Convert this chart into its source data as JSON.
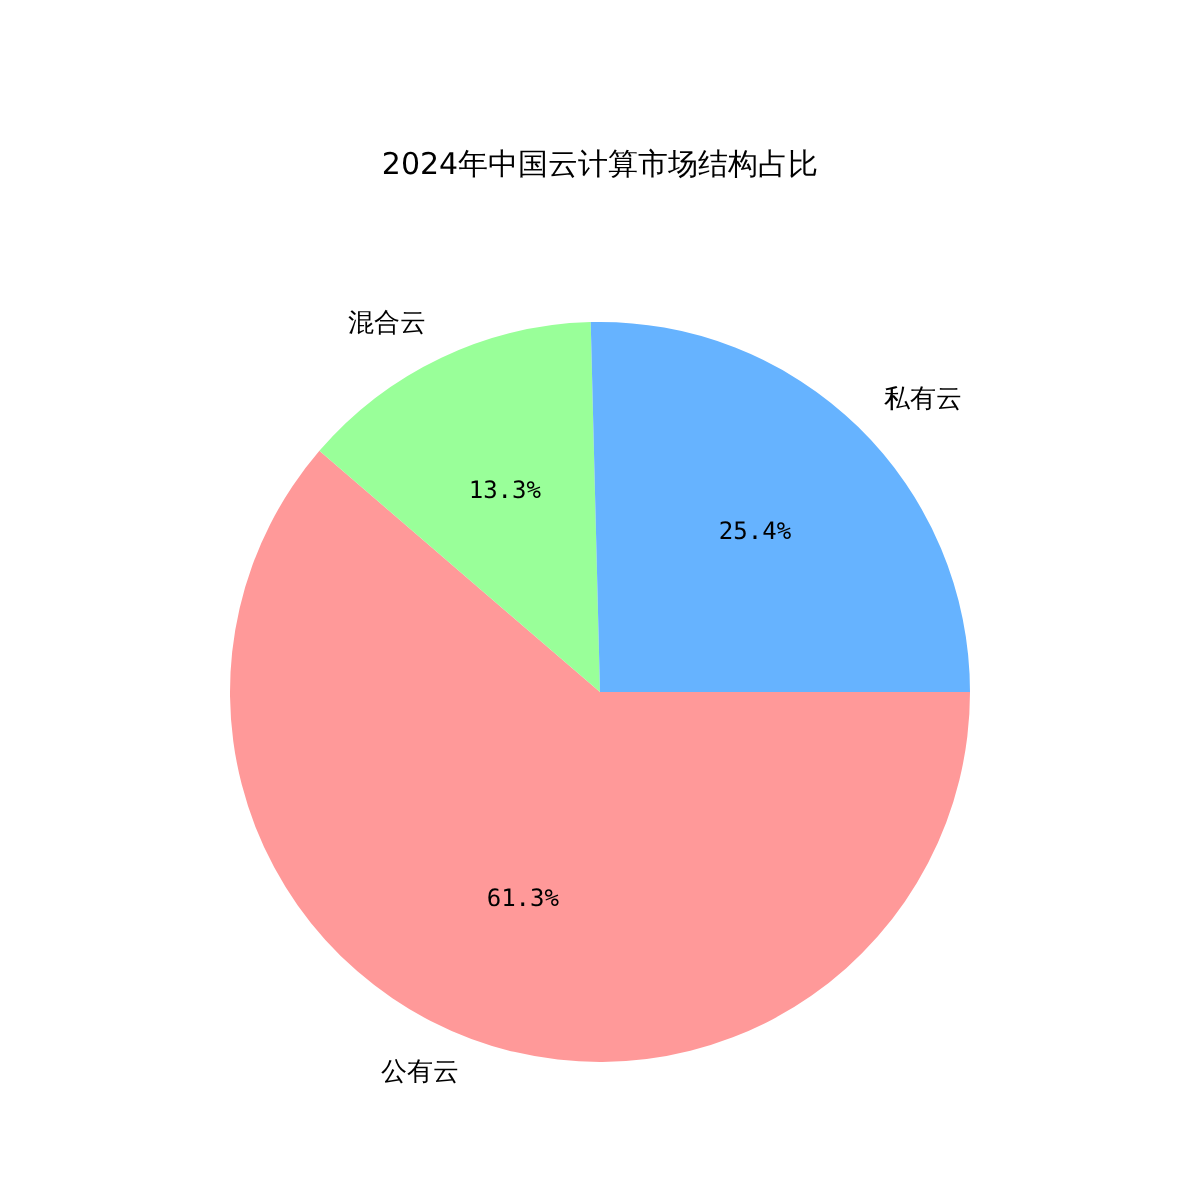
{
  "chart_data": {
    "type": "pie",
    "title": "2024年中国云计算市场结构占比",
    "categories": [
      "公有云",
      "混合云",
      "私有云"
    ],
    "values": [
      61.3,
      13.3,
      25.4
    ],
    "colors": [
      "#ff9999",
      "#99ff99",
      "#66b3ff"
    ],
    "value_labels": [
      "61.3%",
      "13.3%",
      "25.4%"
    ],
    "legend": false
  }
}
